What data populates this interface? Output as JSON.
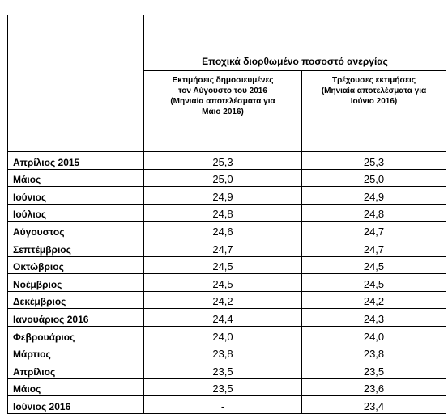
{
  "table": {
    "group_title": "Εποχικά διορθωμένο ποσοστό ανεργίας",
    "col1_header_lines": [
      "Εκτιμήσεις δημοσιευμένες",
      "τον Αύγουστο του 2016",
      "(Μηνιαία αποτελέσματα για",
      "Μάιο  2016)"
    ],
    "col2_header_lines": [
      "Τρέχουσες εκτιμήσεις",
      "(Μηνιαία αποτελέσματα για",
      "Ιούνιο 2016)"
    ],
    "rows": [
      {
        "month": "Απρίλιος 2015",
        "published": "25,3",
        "current": "25,3"
      },
      {
        "month": "Μάιος",
        "published": "25,0",
        "current": "25,0"
      },
      {
        "month": "Ιούνιος",
        "published": "24,9",
        "current": "24,9"
      },
      {
        "month": "Ιούλιος",
        "published": "24,8",
        "current": "24,8"
      },
      {
        "month": "Αύγουστος",
        "published": "24,6",
        "current": "24,7"
      },
      {
        "month": "Σεπτέμβριος",
        "published": "24,7",
        "current": "24,7"
      },
      {
        "month": "Οκτώβριος",
        "published": "24,5",
        "current": "24,5"
      },
      {
        "month": "Νοέμβριος",
        "published": "24,5",
        "current": "24,5"
      },
      {
        "month": "Δεκέμβριος",
        "published": "24,2",
        "current": "24,2"
      },
      {
        "month": "Ιανουάριος 2016",
        "published": "24,4",
        "current": "24,3"
      },
      {
        "month": "Φεβρουάριος",
        "published": "24,0",
        "current": "24,0"
      },
      {
        "month": "Μάρτιος",
        "published": "23,8",
        "current": "23,8"
      },
      {
        "month": "Απρίλιος",
        "published": "23,5",
        "current": "23,5"
      },
      {
        "month": "Μάιος",
        "published": "23,5",
        "current": "23,6"
      },
      {
        "month": "Ιούνιος 2016",
        "published": "-",
        "current": "23,4"
      }
    ]
  }
}
